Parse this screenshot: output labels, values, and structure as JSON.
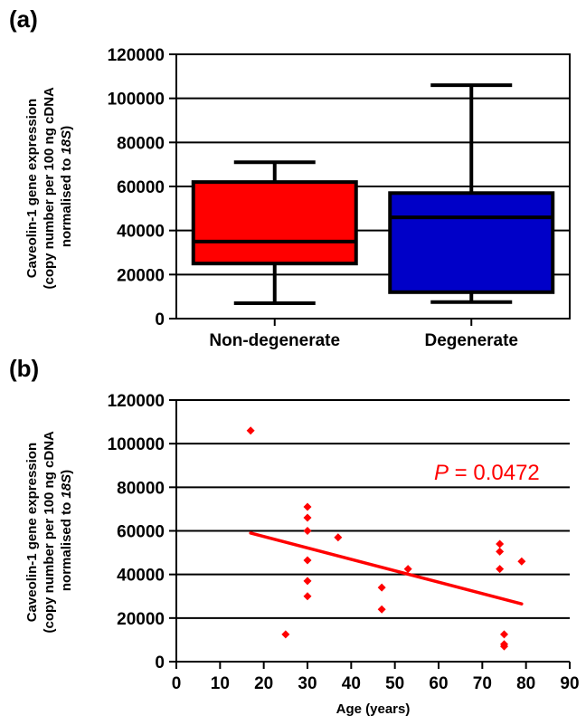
{
  "chart_data": [
    {
      "panel_label": "(a)",
      "type": "box",
      "ylabel_lines": [
        "Caveolin-1 gene expression",
        "(copy number per 100 ng cDNA",
        "normalised to ",
        "18S",
        ")"
      ],
      "ylim": [
        0,
        120000
      ],
      "yticks": [
        0,
        20000,
        40000,
        60000,
        80000,
        100000,
        120000
      ],
      "ytick_labels": [
        "0",
        "20000",
        "40000",
        "60000",
        "80000",
        "100000",
        "120000"
      ],
      "grid": true,
      "categories": [
        "Non-degenerate",
        "Degenerate"
      ],
      "boxes": [
        {
          "min": 7000,
          "q1": 25000,
          "median": 35000,
          "q3": 62000,
          "max": 71000,
          "color": "#ff0000"
        },
        {
          "min": 7500,
          "q1": 12000,
          "median": 46000,
          "q3": 57000,
          "max": 106000,
          "color": "#0000c8"
        }
      ]
    },
    {
      "panel_label": "(b)",
      "type": "scatter",
      "ylabel_lines": [
        "Caveolin-1 gene expression",
        "(copy number per 100 ng cDNA",
        "normalised to ",
        "18S",
        ")"
      ],
      "xlabel": "Age (years)",
      "xlim": [
        0,
        90
      ],
      "xticks": [
        0,
        10,
        20,
        30,
        40,
        50,
        60,
        70,
        80,
        90
      ],
      "xtick_labels": [
        "0",
        "10",
        "20",
        "30",
        "40",
        "50",
        "60",
        "70",
        "80",
        "90"
      ],
      "ylim": [
        0,
        120000
      ],
      "yticks": [
        0,
        20000,
        40000,
        60000,
        80000,
        100000,
        120000
      ],
      "ytick_labels": [
        "0",
        "20000",
        "40000",
        "60000",
        "80000",
        "100000",
        "120000"
      ],
      "grid": true,
      "points_color": "#ff0000",
      "points": [
        {
          "x": 17,
          "y": 106000
        },
        {
          "x": 25,
          "y": 12500
        },
        {
          "x": 30,
          "y": 71000
        },
        {
          "x": 30,
          "y": 66000
        },
        {
          "x": 30,
          "y": 60000
        },
        {
          "x": 30,
          "y": 46500
        },
        {
          "x": 30,
          "y": 37000
        },
        {
          "x": 30,
          "y": 30000
        },
        {
          "x": 37,
          "y": 57000
        },
        {
          "x": 47,
          "y": 34000
        },
        {
          "x": 47,
          "y": 24000
        },
        {
          "x": 53,
          "y": 42500
        },
        {
          "x": 74,
          "y": 54000
        },
        {
          "x": 74,
          "y": 50500
        },
        {
          "x": 74,
          "y": 42500
        },
        {
          "x": 75,
          "y": 12500
        },
        {
          "x": 75,
          "y": 8000
        },
        {
          "x": 75,
          "y": 7000
        },
        {
          "x": 79,
          "y": 46000
        }
      ],
      "trendline": {
        "x": [
          17,
          79
        ],
        "y": [
          59000,
          26500
        ],
        "color": "#ff0000"
      },
      "annotation": {
        "italic": "P",
        "text": " = 0.0472",
        "color": "#ff0000"
      }
    }
  ]
}
